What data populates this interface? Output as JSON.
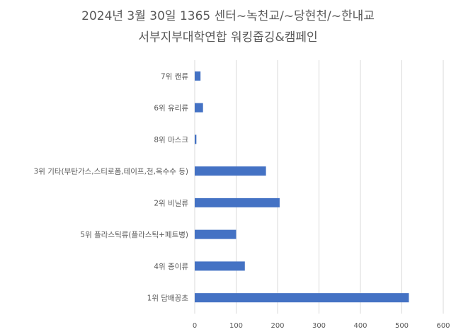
{
  "chart_data": {
    "type": "bar",
    "orientation": "horizontal",
    "title_lines": [
      "2024년 3월 30일 1365 센터~녹천교/~당현천/~한내교",
      "서부지부대학연합 워킹줍깅&캠페인"
    ],
    "categories": [
      "7위 캔류",
      "6위 유리류",
      "8위 마스크",
      "3위 기타(부탄가스,스티로폼,테이프,천,옥수수 등)",
      "2위 비닐류",
      "5위 플라스틱류(플라스틱+페트병)",
      "4위 종이류",
      "1위 담배꽁초"
    ],
    "values": [
      14,
      20,
      4,
      172,
      205,
      100,
      121,
      517
    ],
    "xlim": [
      0,
      600
    ],
    "xticks": [
      0,
      100,
      200,
      300,
      400,
      500,
      600
    ],
    "grid": "vertical",
    "bar_color": "#4472c4"
  }
}
